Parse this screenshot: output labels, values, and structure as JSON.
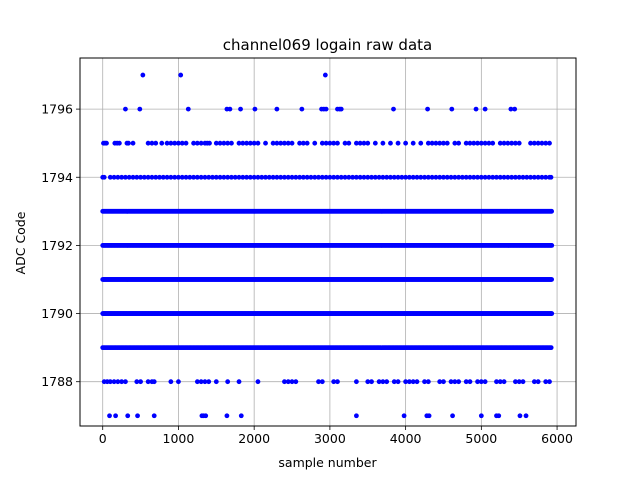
{
  "chart_data": {
    "type": "scatter",
    "title": "channel069 logain raw data",
    "xlabel": "sample number",
    "ylabel": "ADC Code",
    "xlim": [
      -300,
      6250
    ],
    "ylim": [
      1786.7,
      1797.5
    ],
    "xticks": [
      0,
      1000,
      2000,
      3000,
      4000,
      5000,
      6000
    ],
    "xtick_labels": [
      "0",
      "1000",
      "2000",
      "3000",
      "4000",
      "5000",
      "6000"
    ],
    "yticks": [
      1788,
      1790,
      1792,
      1794,
      1796
    ],
    "ytick_labels": [
      "1788",
      "1790",
      "1792",
      "1794",
      "1796"
    ],
    "grid": true,
    "legend": "none",
    "marker_color": "#0000ff",
    "marker": "circle",
    "series": [
      {
        "values_by_level": [
          {
            "y": 1797,
            "x": [
              530,
              1030,
              2940
            ]
          },
          {
            "y": 1796,
            "x": [
              300,
              490,
              1130,
              1640,
              1680,
              1820,
              2010,
              2300,
              2630,
              2890,
              2920,
              2950,
              3100,
              3130,
              3150,
              3840,
              4290,
              4610,
              4930,
              5050,
              5390,
              5440
            ]
          },
          {
            "y": 1795,
            "x": [
              10,
              30,
              50,
              160,
              190,
              220,
              320,
              340,
              400,
              600,
              650,
              700,
              780,
              850,
              900,
              950,
              1000,
              1050,
              1100,
              1200,
              1250,
              1300,
              1350,
              1380,
              1410,
              1500,
              1550,
              1600,
              1650,
              1700,
              1800,
              1850,
              1900,
              1950,
              2000,
              2050,
              2150,
              2250,
              2300,
              2350,
              2400,
              2450,
              2500,
              2600,
              2650,
              2700,
              2800,
              2900,
              2950,
              3000,
              3050,
              3100,
              3200,
              3250,
              3350,
              3400,
              3450,
              3500,
              3600,
              3700,
              3800,
              3900,
              4000,
              4100,
              4200,
              4300,
              4350,
              4400,
              4450,
              4500,
              4550,
              4650,
              4700,
              4800,
              4850,
              4900,
              4950,
              5000,
              5050,
              5100,
              5150,
              5250,
              5300,
              5350,
              5400,
              5450,
              5500,
              5650,
              5700,
              5750,
              5800,
              5850,
              5900
            ]
          },
          {
            "y": 1794,
            "x": [
              0,
              20,
              100,
              150,
              200,
              250,
              300,
              350,
              400,
              450,
              500,
              550,
              600,
              650,
              700,
              750,
              800,
              850,
              900,
              950,
              1000,
              1050,
              1100,
              1150,
              1200,
              1250,
              1300,
              1350,
              1400,
              1450,
              1500,
              1550,
              1600,
              1650,
              1700,
              1750,
              1800,
              1850,
              1900,
              1950,
              2000,
              2050,
              2100,
              2150,
              2200,
              2250,
              2300,
              2350,
              2400,
              2450,
              2500,
              2550,
              2600,
              2650,
              2700,
              2750,
              2800,
              2850,
              2900,
              2950,
              3000,
              3050,
              3100,
              3150,
              3200,
              3250,
              3300,
              3350,
              3400,
              3450,
              3500,
              3550,
              3600,
              3650,
              3700,
              3750,
              3800,
              3850,
              3900,
              3950,
              4000,
              4050,
              4100,
              4150,
              4200,
              4250,
              4300,
              4350,
              4400,
              4450,
              4500,
              4550,
              4600,
              4650,
              4700,
              4750,
              4800,
              4850,
              4900,
              4950,
              5000,
              5050,
              5100,
              5150,
              5200,
              5250,
              5300,
              5350,
              5400,
              5450,
              5500,
              5550,
              5600,
              5650,
              5700,
              5750,
              5800,
              5850,
              5900,
              5920
            ]
          },
          {
            "y": 1793,
            "range": [
              0,
              5930
            ],
            "step": 12
          },
          {
            "y": 1792,
            "range": [
              0,
              5930
            ],
            "step": 10
          },
          {
            "y": 1791,
            "range": [
              0,
              5930
            ],
            "step": 8
          },
          {
            "y": 1790,
            "range": [
              0,
              5930
            ],
            "step": 10
          },
          {
            "y": 1789,
            "range": [
              0,
              5930
            ],
            "step": 18
          },
          {
            "y": 1788,
            "x": [
              20,
              60,
              100,
              150,
              200,
              250,
              300,
              450,
              500,
              600,
              650,
              680,
              900,
              1000,
              1250,
              1300,
              1350,
              1400,
              1500,
              1650,
              1800,
              2050,
              2400,
              2450,
              2500,
              2550,
              2850,
              2900,
              3050,
              3100,
              3350,
              3500,
              3550,
              3650,
              3700,
              3750,
              3850,
              3900,
              4000,
              4050,
              4100,
              4150,
              4250,
              4300,
              4450,
              4500,
              4600,
              4650,
              4700,
              4800,
              4850,
              4950,
              5000,
              5050,
              5200,
              5250,
              5300,
              5450,
              5500,
              5550,
              5700,
              5750,
              5850,
              5900
            ]
          },
          {
            "y": 1787,
            "x": [
              90,
              170,
              330,
              460,
              680,
              1310,
              1330,
              1360,
              1640,
              1830,
              3350,
              3980,
              4280,
              4310,
              4620,
              5000,
              5200,
              5230,
              5510,
              5590
            ]
          }
        ]
      }
    ]
  }
}
